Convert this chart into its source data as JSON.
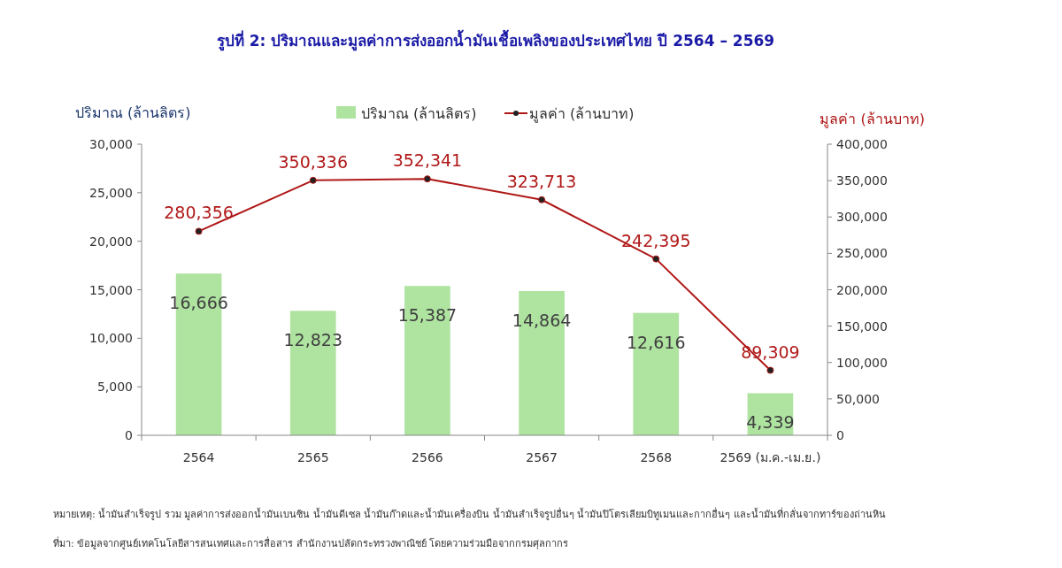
{
  "chart_data": {
    "type": "bar",
    "title": "รูปที่ 2: ปริมาณและมูลค่าการส่งออกน้ำมันเชื้อเพลิงของประเทศไทย ปี 2564 – 2569",
    "ylabel": "ปริมาณ (ล้านลิตร)",
    "y2label": "มูลค่า (ล้านบาท)",
    "categories": [
      "2564",
      "2565",
      "2566",
      "2567",
      "2568",
      "2569 (ม.ค.-เม.ย.)"
    ],
    "series": [
      {
        "name": "ปริมาณ (ล้านลิตร)",
        "color": "#aee3a0",
        "values": [
          16666,
          12823,
          15387,
          14864,
          12616,
          4339
        ],
        "value_labels": [
          "16,666",
          "12,823",
          "15,387",
          "14,864",
          "12,616",
          "4,339"
        ]
      },
      {
        "name": "มูลค่า (ล้านบาท)",
        "type": "line",
        "axis": "y2",
        "color": "#b01818",
        "marker": "circle",
        "values": [
          280356,
          350336,
          352341,
          323713,
          242395,
          89309
        ],
        "value_labels": [
          "280,356",
          "350,336",
          "352,341",
          "323,713",
          "242,395",
          "89,309"
        ]
      }
    ],
    "ylim": [
      0,
      30000
    ],
    "yticks": [
      {
        "value": 0,
        "label": "0"
      },
      {
        "value": 5000,
        "label": "5,000"
      },
      {
        "value": 10000,
        "label": "10,000"
      },
      {
        "value": 15000,
        "label": "15,000"
      },
      {
        "value": 20000,
        "label": "20,000"
      },
      {
        "value": 25000,
        "label": "25,000"
      },
      {
        "value": 30000,
        "label": "30,000"
      }
    ],
    "y2lim": [
      0,
      400000
    ],
    "y2ticks": [
      {
        "value": 0,
        "label": "0"
      },
      {
        "value": 50000,
        "label": "50,000"
      },
      {
        "value": 100000,
        "label": "100,000"
      },
      {
        "value": 150000,
        "label": "150,000"
      },
      {
        "value": 200000,
        "label": "200,000"
      },
      {
        "value": 250000,
        "label": "250,000"
      },
      {
        "value": 300000,
        "label": "300,000"
      },
      {
        "value": 350000,
        "label": "350,000"
      },
      {
        "value": 400000,
        "label": "400,000"
      }
    ],
    "legend": "top",
    "grid": false,
    "annotations": [
      "หมายเหตุ: น้ำมันสำเร็จรูป รวม มูลค่าการส่งออกน้ำมันเบนซิน น้ำมันดีเซล น้ำมันก๊าดและน้ำมันเครื่องบิน น้ำมันสำเร็จรูปอื่นๆ น้ำมันปิโตรเลียมบิทูเมนและกากอื่นๆ และน้ำมันที่กลั่นจากทาร์ของถ่านหิน",
      "ที่มา: ข้อมูลจากศูนย์เทคโนโลยีสารสนเทศและการสื่อสาร สำนักงานปลัดกระทรวงพาณิชย์ โดยความร่วมมือจากกรมศุลกากร"
    ]
  }
}
